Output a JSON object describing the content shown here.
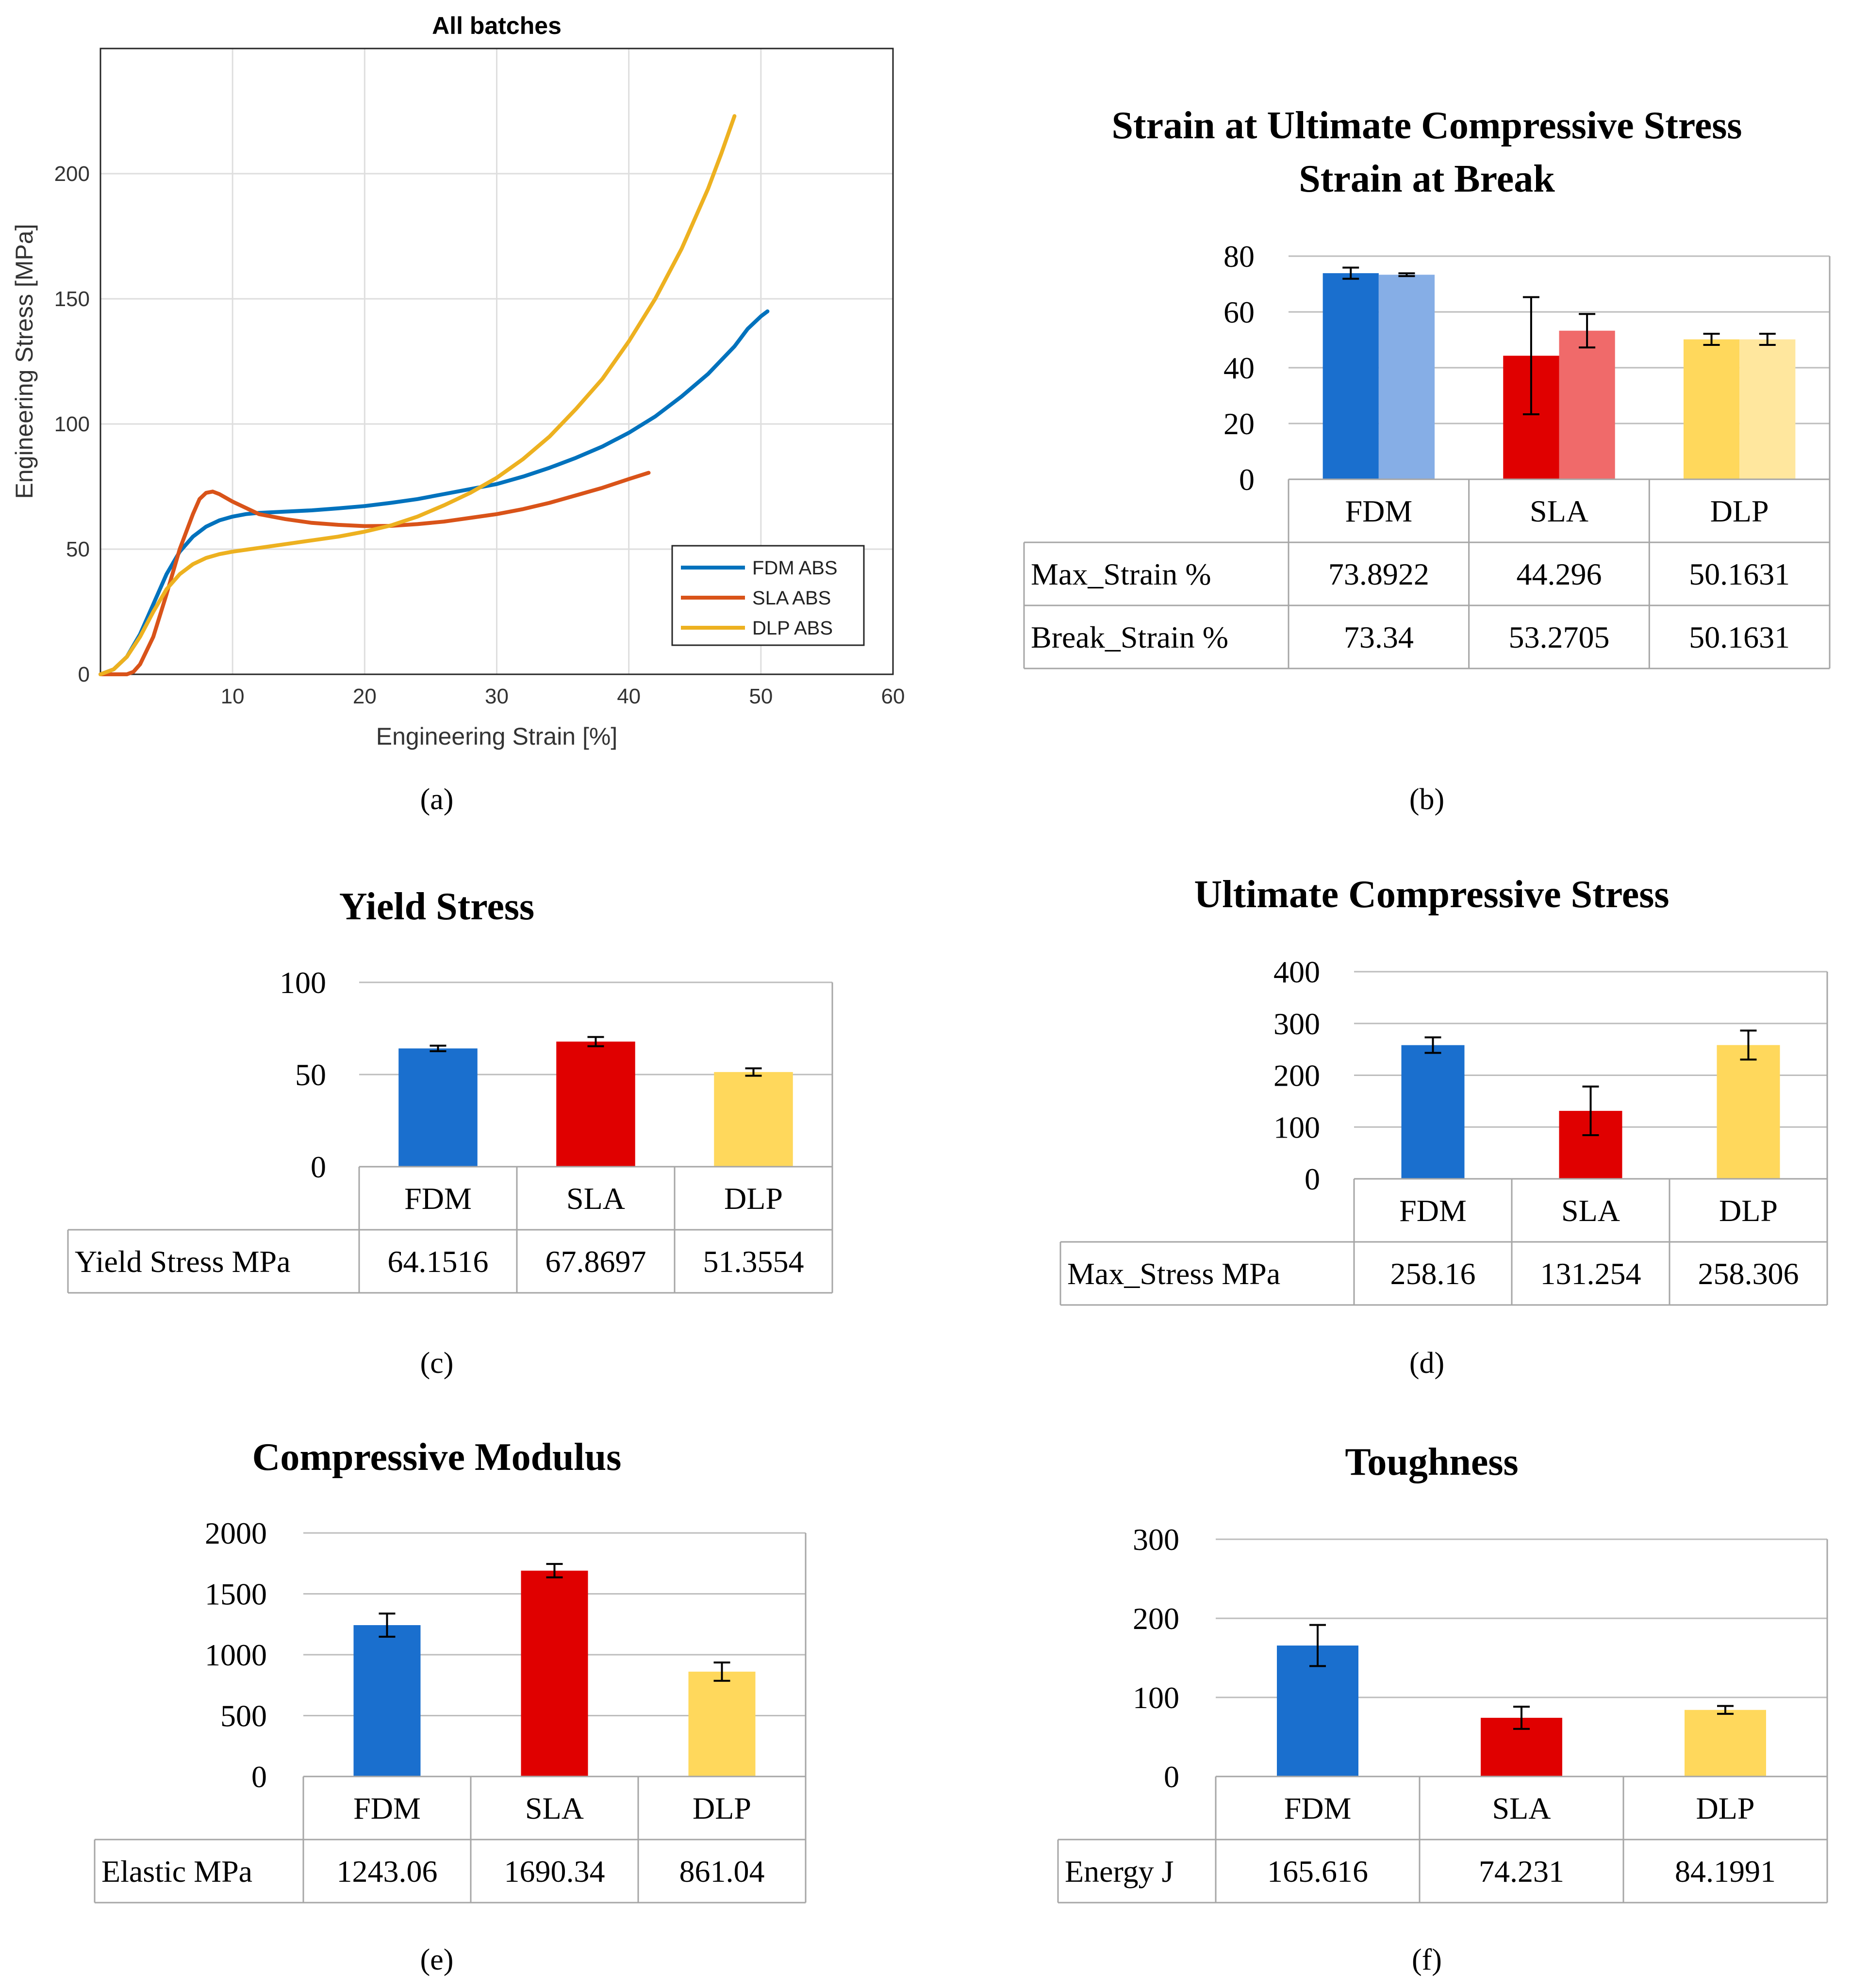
{
  "figure": {
    "captions": [
      "(a)",
      "(b)",
      "(c)",
      "(d)",
      "(e)",
      "(f)"
    ]
  },
  "colors": {
    "fdm": "#1a6fce",
    "sla": "#e00000",
    "dlp": "#ffd85c",
    "fdm_light": "#86aee6",
    "sla_light": "#f06a6a",
    "dlp_light": "#ffe79e",
    "curve_fdm": "#0072bd",
    "curve_sla": "#d95319",
    "curve_dlp": "#edb120"
  },
  "chart_data": [
    {
      "id": "a",
      "type": "line",
      "title": "All batches",
      "xlabel": "Engineering Strain [%]",
      "ylabel": "Engineering Stress [MPa]",
      "xlim": [
        0,
        60
      ],
      "ylim": [
        0,
        250
      ],
      "xticks": [
        10,
        20,
        30,
        40,
        50,
        60
      ],
      "yticks": [
        0,
        50,
        100,
        150,
        200
      ],
      "grid": true,
      "legend_position": "bottom-right",
      "series": [
        {
          "name": "FDM ABS",
          "color_key": "curve_fdm",
          "x": [
            0,
            1,
            2,
            3,
            4,
            5,
            6,
            7,
            8,
            9,
            10,
            11,
            12,
            14,
            16,
            18,
            20,
            22,
            24,
            26,
            28,
            30,
            32,
            34,
            36,
            38,
            40,
            42,
            44,
            46,
            48,
            49,
            50,
            50.5
          ],
          "y": [
            0,
            2,
            7,
            16,
            28,
            40,
            49,
            55,
            59,
            61.5,
            63,
            64,
            64.5,
            65,
            65.5,
            66.3,
            67.2,
            68.5,
            70,
            72,
            74,
            76,
            79,
            82.5,
            86.5,
            91,
            96.5,
            103,
            111,
            120,
            131,
            138,
            143,
            145
          ]
        },
        {
          "name": "SLA ABS",
          "color_key": "curve_sla",
          "x": [
            0,
            2,
            2.5,
            3,
            4,
            5,
            6,
            7,
            7.5,
            8,
            8.5,
            9,
            10,
            11,
            12,
            14,
            16,
            18,
            20,
            22,
            24,
            26,
            28,
            30,
            32,
            34,
            36,
            38,
            40,
            41.5
          ],
          "y": [
            0,
            0,
            1,
            4,
            15,
            32,
            50,
            64,
            70,
            72.5,
            73,
            72,
            69,
            66.5,
            64,
            62,
            60.5,
            59.7,
            59.2,
            59.3,
            60,
            61,
            62.5,
            64,
            66,
            68.5,
            71.5,
            74.5,
            78,
            80.5
          ]
        },
        {
          "name": "DLP ABS",
          "color_key": "curve_dlp",
          "x": [
            0,
            1,
            2,
            3,
            4,
            5,
            6,
            7,
            8,
            9,
            10,
            12,
            14,
            16,
            18,
            20,
            22,
            24,
            26,
            28,
            30,
            32,
            34,
            36,
            38,
            40,
            42,
            44,
            46,
            47,
            48
          ],
          "y": [
            0,
            2,
            7,
            15,
            25,
            34,
            40,
            44,
            46.5,
            48,
            49,
            50.5,
            52,
            53.5,
            55,
            57,
            59.5,
            63,
            67.5,
            72.5,
            78.5,
            86,
            95,
            106,
            118,
            133,
            150,
            170,
            194,
            208,
            223
          ]
        }
      ]
    },
    {
      "id": "b",
      "type": "bar",
      "title_lines": [
        "Strain at Ultimate Compressive Stress",
        "Strain at Break"
      ],
      "categories": [
        "FDM",
        "SLA",
        "DLP"
      ],
      "ylim": [
        0,
        80
      ],
      "yticks": [
        0,
        20,
        40,
        60,
        80
      ],
      "series": [
        {
          "name": "Max_Strain %",
          "labels": [
            "73.8922",
            "44.296",
            "50.1631"
          ],
          "values": [
            73.8922,
            44.296,
            50.1631
          ],
          "errors": [
            2,
            21,
            2
          ],
          "color_keys": [
            "fdm",
            "sla",
            "dlp"
          ]
        },
        {
          "name": "Break_Strain %",
          "labels": [
            "73.34",
            "53.2705",
            "50.1631"
          ],
          "values": [
            73.34,
            53.2705,
            50.1631
          ],
          "errors": [
            0.5,
            6,
            2
          ],
          "color_keys": [
            "fdm_light",
            "sla_light",
            "dlp_light"
          ]
        }
      ]
    },
    {
      "id": "c",
      "type": "bar",
      "title_lines": [
        "Yield Stress"
      ],
      "categories": [
        "FDM",
        "SLA",
        "DLP"
      ],
      "ylim": [
        0,
        100
      ],
      "yticks": [
        0,
        50,
        100
      ],
      "series": [
        {
          "name": "Yield Stress MPa",
          "labels": [
            "64.1516",
            "67.8697",
            "51.3554"
          ],
          "values": [
            64.1516,
            67.8697,
            51.3554
          ],
          "errors": [
            1.5,
            2.5,
            2
          ],
          "color_keys": [
            "fdm",
            "sla",
            "dlp"
          ]
        }
      ]
    },
    {
      "id": "d",
      "type": "bar",
      "title_lines": [
        "Ultimate Compressive Stress"
      ],
      "categories": [
        "FDM",
        "SLA",
        "DLP"
      ],
      "ylim": [
        0,
        400
      ],
      "yticks": [
        0,
        100,
        200,
        300,
        400
      ],
      "series": [
        {
          "name": "Max_Stress MPa",
          "labels": [
            "258.16",
            "131.254",
            "258.306"
          ],
          "values": [
            258.16,
            131.254,
            258.306
          ],
          "errors": [
            15,
            47,
            28
          ],
          "color_keys": [
            "fdm",
            "sla",
            "dlp"
          ]
        }
      ]
    },
    {
      "id": "e",
      "type": "bar",
      "title_lines": [
        "Compressive Modulus"
      ],
      "categories": [
        "FDM",
        "SLA",
        "DLP"
      ],
      "ylim": [
        0,
        2000
      ],
      "yticks": [
        0,
        500,
        1000,
        1500,
        2000
      ],
      "series": [
        {
          "name": "Elastic MPa",
          "labels": [
            "1243.06",
            "1690.34",
            "861.04"
          ],
          "values": [
            1243.06,
            1690.34,
            861.04
          ],
          "errors": [
            95,
            55,
            75
          ],
          "color_keys": [
            "fdm",
            "sla",
            "dlp"
          ]
        }
      ]
    },
    {
      "id": "f",
      "type": "bar",
      "title_lines": [
        "Toughness"
      ],
      "categories": [
        "FDM",
        "SLA",
        "DLP"
      ],
      "ylim": [
        0,
        300
      ],
      "yticks": [
        0,
        100,
        200,
        300
      ],
      "series": [
        {
          "name": "Energy J",
          "labels": [
            "165.616",
            "74.231",
            "84.1991"
          ],
          "values": [
            165.616,
            74.231,
            84.1991
          ],
          "errors": [
            26,
            14,
            5
          ],
          "color_keys": [
            "fdm",
            "sla",
            "dlp"
          ]
        }
      ]
    }
  ]
}
